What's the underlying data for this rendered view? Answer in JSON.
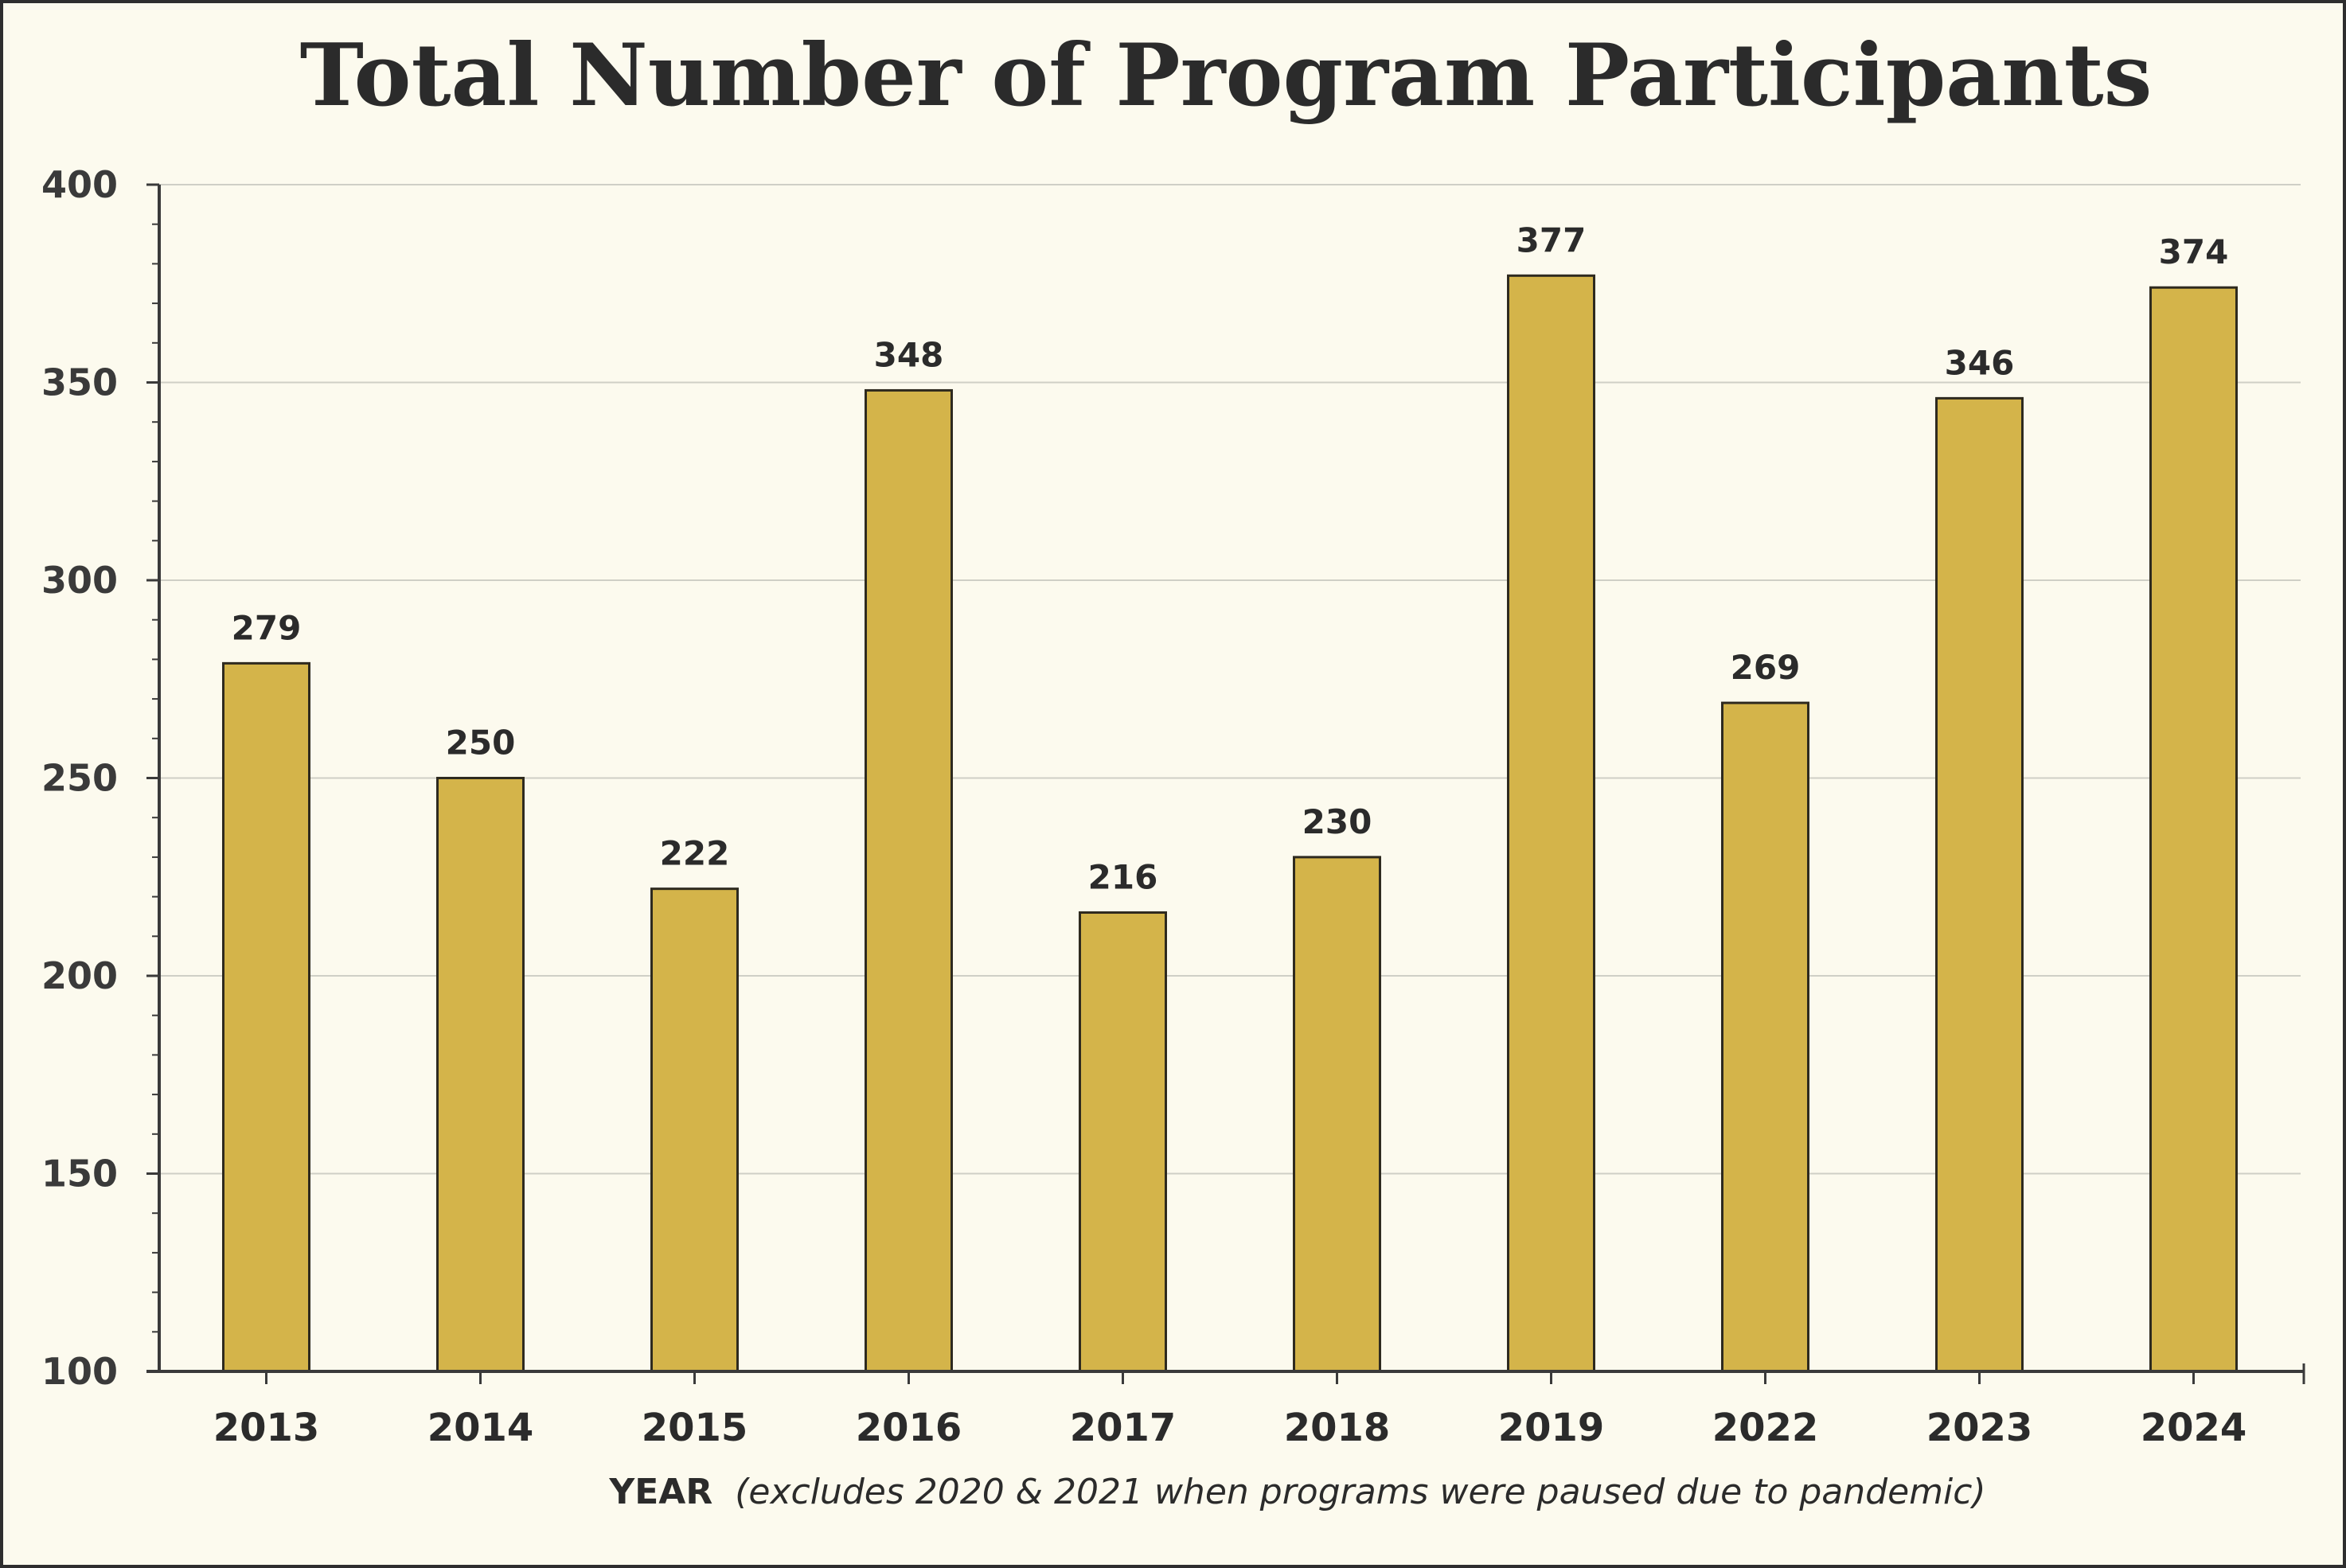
{
  "chart_data": {
    "type": "bar",
    "title": "Total Number of Program Participants",
    "xlabel": "YEAR",
    "xlabel_note": "(excludes 2020 & 2021 when programs were paused due to pandemic)",
    "ylabel": "",
    "categories": [
      "2013",
      "2014",
      "2015",
      "2016",
      "2017",
      "2018",
      "2019",
      "2022",
      "2023",
      "2024"
    ],
    "values": [
      279,
      250,
      222,
      348,
      216,
      230,
      377,
      269,
      346,
      374
    ],
    "ylim": [
      100,
      400
    ],
    "yticks": [
      100,
      150,
      200,
      250,
      300,
      350,
      400
    ],
    "grid": true,
    "legend": "none",
    "colors": {
      "bar": "#d4b44a",
      "bar_stroke": "#2e2a1f",
      "grid": "#cfcfc6",
      "axis": "#3a3a3a",
      "text": "#2b2b2b",
      "background": "#fcfaee"
    }
  }
}
